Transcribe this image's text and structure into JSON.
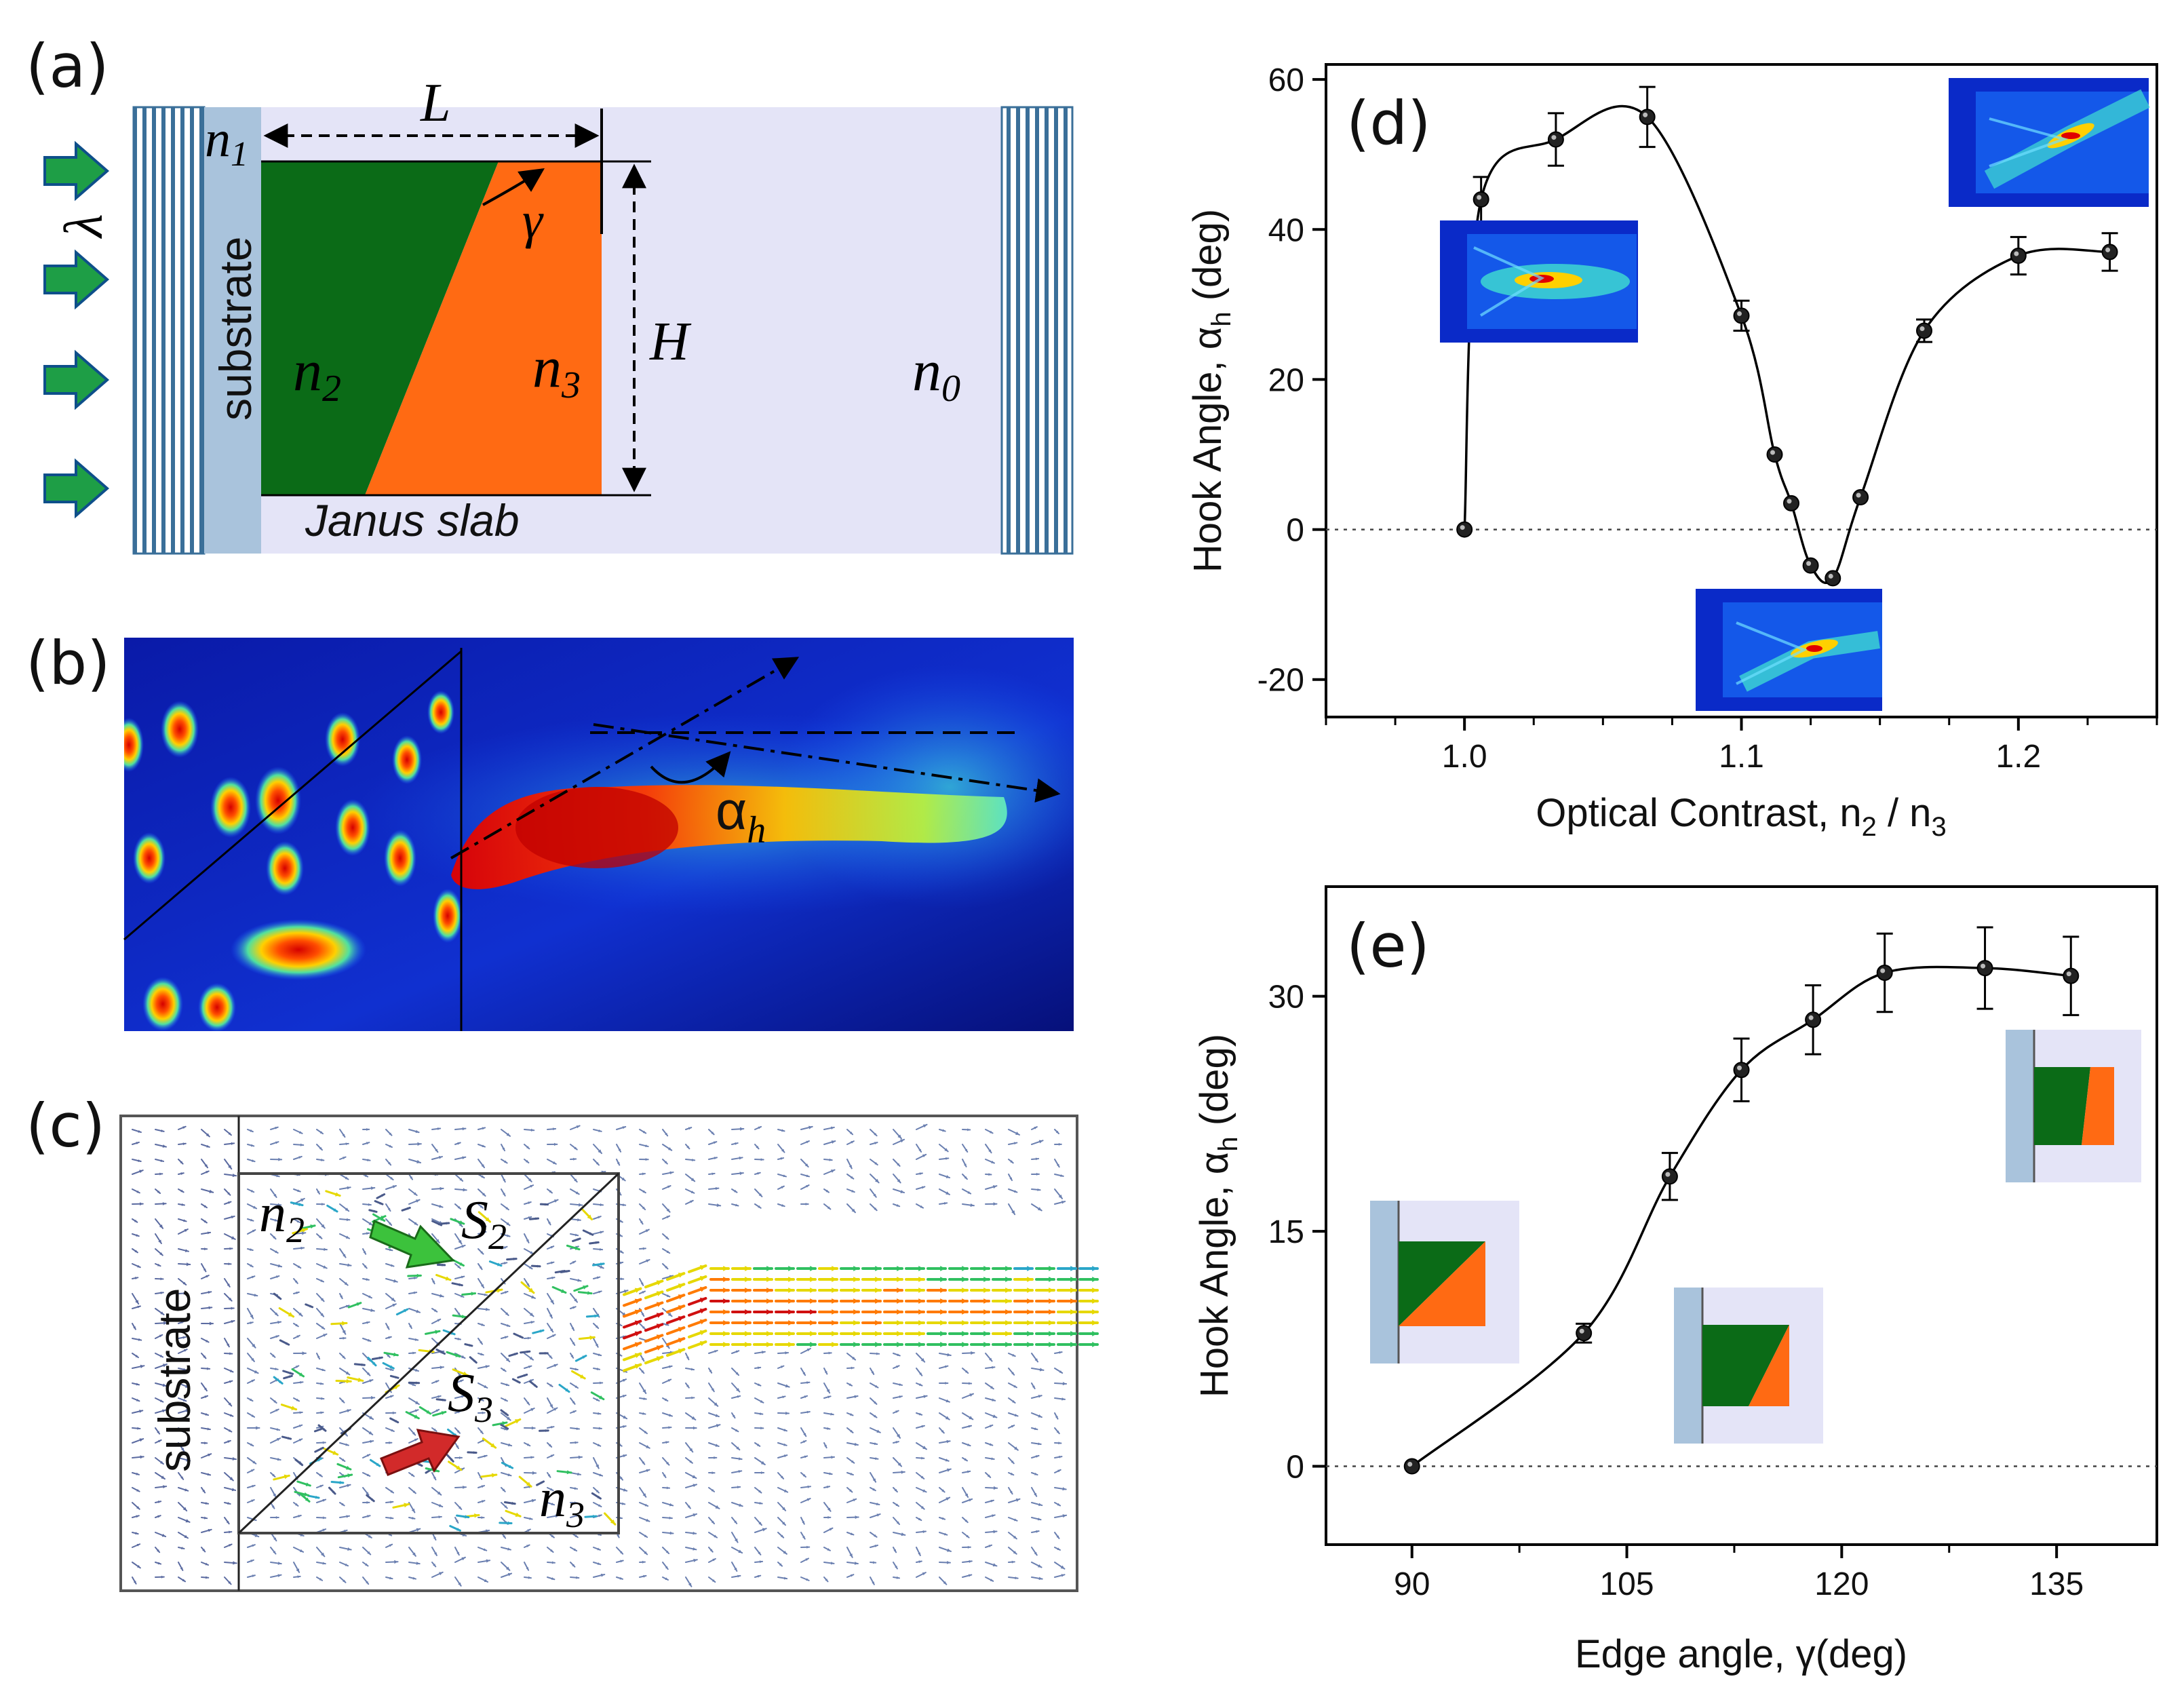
{
  "panel_a": {
    "label": "(a)",
    "substrate": "substrate",
    "n1": "n",
    "n1_sub": "1",
    "L": "L",
    "H": "H",
    "gamma": "γ",
    "lambda": "λ",
    "n2": "n",
    "n2_sub": "2",
    "n3": "n",
    "n3_sub": "3",
    "n0": "n",
    "n0_sub": "0",
    "slab": "Janus slab",
    "colors": {
      "substrate": "#a9c3dc",
      "n2": "#0b6b17",
      "n3": "#ff6a13",
      "medium": "#e4e4f7",
      "arrow": "#1e9e46"
    }
  },
  "panel_b": {
    "label": "(b)",
    "alpha": "α",
    "alpha_sub": "h"
  },
  "panel_c": {
    "label": "(c)",
    "substrate": "substrate",
    "n2": "n",
    "n2_sub": "2",
    "n3": "n",
    "n3_sub": "3",
    "S2": "S",
    "S2_sub": "2",
    "S3": "S",
    "S3_sub": "3"
  },
  "panel_d": {
    "label": "(d)",
    "chart_data": {
      "type": "line",
      "xlabel": "Optical Contrast, n",
      "xlabel_sub1": "2",
      "xlabel_mid": " / n",
      "xlabel_sub2": "3",
      "ylabel": "Hook Angle, α",
      "ylabel_sub": "h",
      "ylabel_tail": " (deg)",
      "xlim": [
        0.95,
        1.25
      ],
      "ylim": [
        -25,
        62
      ],
      "xticks": [
        1.0,
        1.1,
        1.2
      ],
      "xtick_labels": [
        "1.0",
        "1.1",
        "1.2"
      ],
      "yticks": [
        -20,
        0,
        20,
        40,
        60
      ],
      "ytick_labels": [
        "-20",
        "0",
        "20",
        "40",
        "60"
      ],
      "points": [
        {
          "x": 1.0,
          "y": 0,
          "err": 0
        },
        {
          "x": 1.006,
          "y": 44,
          "err": 3
        },
        {
          "x": 1.033,
          "y": 52,
          "err": 3.5
        },
        {
          "x": 1.066,
          "y": 55,
          "err": 4
        },
        {
          "x": 1.1,
          "y": 28.5,
          "err": 2
        },
        {
          "x": 1.112,
          "y": 10,
          "err": 0
        },
        {
          "x": 1.118,
          "y": 3.5,
          "err": 0
        },
        {
          "x": 1.125,
          "y": -4.8,
          "err": 0
        },
        {
          "x": 1.133,
          "y": -6.5,
          "err": 0
        },
        {
          "x": 1.143,
          "y": 4.3,
          "err": 0
        },
        {
          "x": 1.166,
          "y": 26.5,
          "err": 1.5
        },
        {
          "x": 1.2,
          "y": 36.5,
          "err": 2.5
        },
        {
          "x": 1.233,
          "y": 37,
          "err": 2.5
        }
      ]
    }
  },
  "panel_e": {
    "label": "(e)",
    "chart_data": {
      "type": "line",
      "xlabel": "Edge angle, γ(deg)",
      "ylabel": "Hook Angle, α",
      "ylabel_sub": "h",
      "ylabel_tail": " (deg)",
      "xlim": [
        84,
        142
      ],
      "ylim": [
        -5,
        37
      ],
      "xticks": [
        90,
        105,
        120,
        135
      ],
      "xtick_labels": [
        "90",
        "105",
        "120",
        "135"
      ],
      "yticks": [
        0,
        15,
        30
      ],
      "ytick_labels": [
        "0",
        "15",
        "30"
      ],
      "points": [
        {
          "x": 90,
          "y": 0,
          "err": 0
        },
        {
          "x": 102,
          "y": 8.5,
          "err": 0.6
        },
        {
          "x": 108,
          "y": 18.5,
          "err": 1.5
        },
        {
          "x": 113,
          "y": 25.3,
          "err": 2
        },
        {
          "x": 118,
          "y": 28.5,
          "err": 2.2
        },
        {
          "x": 123,
          "y": 31.5,
          "err": 2.5
        },
        {
          "x": 130,
          "y": 31.8,
          "err": 2.6
        },
        {
          "x": 136,
          "y": 31.3,
          "err": 2.5
        }
      ]
    }
  }
}
